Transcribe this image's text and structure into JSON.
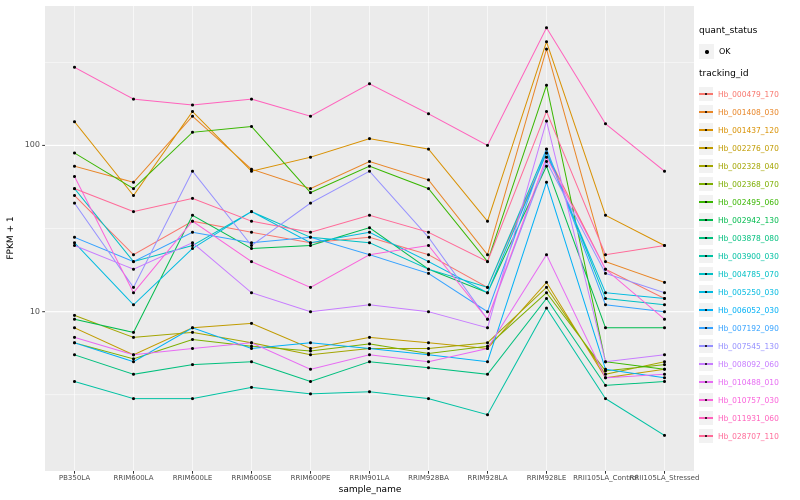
{
  "legend": {
    "quant_status_title": "quant_status",
    "quant_status_items": [
      {
        "label": "OK",
        "marker": "black-point"
      }
    ],
    "tracking_id_title": "tracking_id",
    "position": "right"
  },
  "chart_data": {
    "type": "line",
    "title": "",
    "xlabel": "sample_name",
    "ylabel": "FPKM + 1",
    "y_scale": "log10",
    "ylim": [
      1.1,
      690
    ],
    "y_major_ticks": [
      10,
      100
    ],
    "y_tick_labels": [
      "10",
      "100"
    ],
    "y_minor_gridlines": [
      3.162,
      31.62,
      316.2
    ],
    "grid": true,
    "panel_background": "#EBEBEB",
    "gridline_color": "#FFFFFF",
    "point_color": "#000000",
    "point_legend": "quant_status = OK (black point markers at every vertex)",
    "legend_position": "right",
    "categories": [
      "PB350LA",
      "RRIM600LA",
      "RRIM600LE",
      "RRIM600SE",
      "RRIM600PE",
      "RRIM901LA",
      "RRIM928BA",
      "RRIM928LA",
      "RRIM928LE",
      "RRII105LA_Control",
      "RRII105LA_Stressed"
    ],
    "series": [
      {
        "name": "Hb_000479_170",
        "color": "#F8766D",
        "values": [
          50,
          22,
          35,
          30,
          26,
          28,
          22,
          14,
          90,
          18,
          12
        ]
      },
      {
        "name": "Hb_001408_030",
        "color": "#E88526",
        "values": [
          75,
          60,
          150,
          72,
          55,
          80,
          62,
          22,
          380,
          20,
          15
        ]
      },
      {
        "name": "Hb_001437_120",
        "color": "#D89000",
        "values": [
          139,
          50,
          160,
          70,
          85,
          110,
          95,
          35,
          420,
          38,
          25
        ]
      },
      {
        "name": "Hb_002276_070",
        "color": "#C09B00",
        "values": [
          8,
          5.5,
          8,
          8.5,
          6,
          7,
          6.5,
          6,
          15,
          4,
          4.5
        ]
      },
      {
        "name": "Hb_002328_040",
        "color": "#A3A500",
        "values": [
          9.5,
          7,
          7.5,
          6.5,
          5.5,
          6,
          6,
          6.5,
          14,
          4.2,
          5
        ]
      },
      {
        "name": "Hb_002368_070",
        "color": "#7CAE00",
        "values": [
          6.5,
          5.2,
          6.8,
          6.2,
          5.8,
          6.4,
          5.6,
          6.2,
          13,
          4.4,
          4.8
        ]
      },
      {
        "name": "Hb_002495_060",
        "color": "#39B600",
        "values": [
          90,
          55,
          120,
          130,
          52,
          75,
          55,
          20,
          230,
          5,
          4.5
        ]
      },
      {
        "name": "Hb_002942_130",
        "color": "#00BB4E",
        "values": [
          9,
          7.5,
          38,
          24,
          25,
          32,
          18,
          13,
          75,
          8,
          8
        ]
      },
      {
        "name": "Hb_003878_080",
        "color": "#00BF7D",
        "values": [
          5.5,
          4.2,
          4.8,
          5,
          3.8,
          5,
          4.6,
          4.2,
          12,
          3.6,
          3.8
        ]
      },
      {
        "name": "Hb_003900_030",
        "color": "#00C1A3",
        "values": [
          3.8,
          3.0,
          3.0,
          3.5,
          3.2,
          3.3,
          3.0,
          2.4,
          10.5,
          3.0,
          1.8
        ]
      },
      {
        "name": "Hb_004785_070",
        "color": "#00BFC4",
        "values": [
          55,
          20,
          25,
          40,
          28,
          26,
          18,
          14,
          95,
          12,
          11
        ]
      },
      {
        "name": "Hb_005250_030",
        "color": "#00BAE0",
        "values": [
          26,
          11,
          24,
          40,
          26,
          30,
          20,
          13,
          90,
          13,
          12
        ]
      },
      {
        "name": "Hb_006052_030",
        "color": "#00B0F6",
        "values": [
          6.5,
          5,
          8,
          6,
          6.5,
          6,
          5.5,
          5,
          60,
          4.5,
          4
        ]
      },
      {
        "name": "Hb_007192_090",
        "color": "#35A2FF",
        "values": [
          28,
          20,
          30,
          26,
          28,
          22,
          17,
          10,
          95,
          11,
          10
        ]
      },
      {
        "name": "Hb_007545_130",
        "color": "#9590FF",
        "values": [
          45,
          14,
          70,
          25,
          45,
          70,
          28,
          9,
          80,
          17,
          13
        ]
      },
      {
        "name": "Hb_008092_060",
        "color": "#C77CFF",
        "values": [
          25,
          18,
          26,
          13,
          10,
          11,
          10,
          8,
          140,
          5,
          5.5
        ]
      },
      {
        "name": "Hb_010488_010",
        "color": "#E76BF3",
        "values": [
          7,
          5.5,
          6,
          6.5,
          4.5,
          5.5,
          5,
          6,
          22,
          4,
          4.2
        ]
      },
      {
        "name": "Hb_010757_030",
        "color": "#FA62DB",
        "values": [
          65,
          13,
          35,
          20,
          14,
          22,
          25,
          9,
          85,
          18,
          9
        ]
      },
      {
        "name": "Hb_011931_060",
        "color": "#FF62BC",
        "values": [
          295,
          190,
          175,
          190,
          150,
          235,
          155,
          100,
          510,
          135,
          70
        ]
      },
      {
        "name": "Hb_028707_110",
        "color": "#FF6A98",
        "values": [
          55,
          40,
          48,
          35,
          30,
          38,
          30,
          20,
          160,
          22,
          25
        ]
      }
    ]
  }
}
